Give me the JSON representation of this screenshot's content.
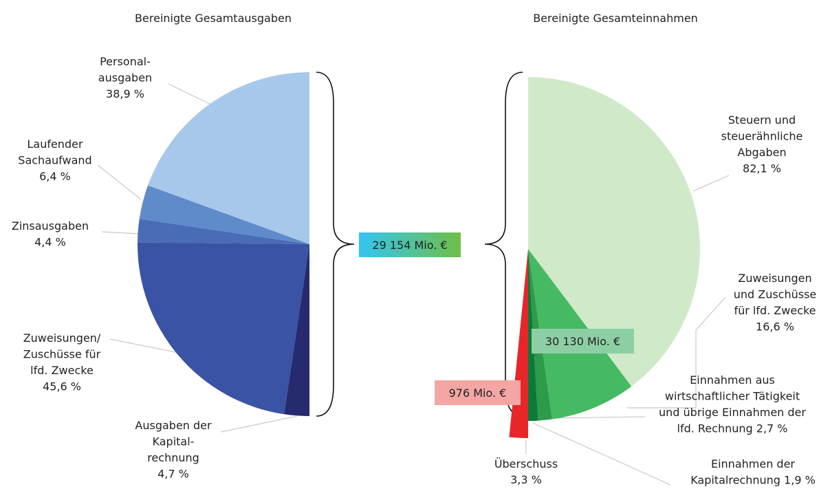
{
  "chart_data": [
    {
      "type": "pie",
      "title": "Bereinigte Gesamtausgaben",
      "categories": [
        [
          "Personal-",
          "ausgaben"
        ],
        [
          "Laufender",
          "Sachaufwand"
        ],
        [
          "Zinsausgaben"
        ],
        [
          "Zuweisungen/",
          "Zuschüsse für",
          "lfd. Zwecke"
        ],
        [
          "Ausgaben der",
          "Kapital-",
          "rechnung"
        ]
      ],
      "values": [
        38.9,
        6.4,
        4.4,
        45.6,
        4.7
      ],
      "value_labels": [
        "38,9 %",
        "6,4 %",
        "4,4 %",
        "45,6 %",
        "4,7 %"
      ],
      "colors": [
        "#a7c8ea",
        "#5f8bcb",
        "#4a6bb5",
        "#3a53a4",
        "#262a6e"
      ],
      "annotation": "29 154 Mio. €"
    },
    {
      "type": "pie",
      "title": "Bereinigte Gesamteinnahmen",
      "categories": [
        [
          "Steuern und",
          "steuerähnliche",
          "Abgaben"
        ],
        [
          "Zuweisungen",
          "und Zuschüsse",
          "für lfd. Zwecke"
        ],
        [
          "Einnahmen aus",
          "wirtschaftlicher Tätigkeit",
          "und übrige Einnahmen der",
          "lfd. Rechnung"
        ],
        [
          "Einnahmen der",
          "Kapitalrechnung"
        ]
      ],
      "values": [
        82.1,
        16.6,
        2.7,
        1.9
      ],
      "value_labels": [
        "82,1 %",
        "16,6 %",
        "2,7 %",
        "1,9 %"
      ],
      "colors": [
        "#d0e9c8",
        "#46b963",
        "#2e9a4a",
        "#0a7a3a"
      ],
      "surplus": {
        "name": "Überschuss",
        "value": 3.3,
        "value_label": "3,3 %",
        "color": "#e8262a",
        "annotation": "976 Mio. €"
      },
      "annotation": "30 130 Mio. €"
    }
  ]
}
